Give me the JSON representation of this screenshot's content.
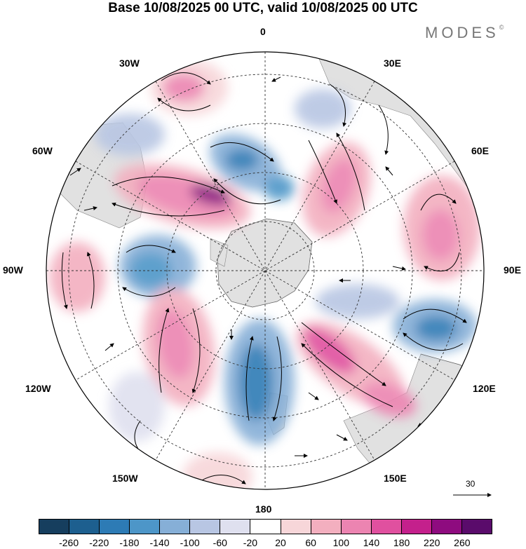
{
  "title": "Base 10/08/2025 00 UTC, valid 10/08/2025 00 UTC",
  "brand": "MODES",
  "brand_mark": "©",
  "longitude_labels": {
    "n": "0",
    "ne": "30E",
    "ene": "60E",
    "e": "90E",
    "ese": "120E",
    "se": "150E",
    "s": "180",
    "sw": "150W",
    "wsw": "120W",
    "w": "90W",
    "wnw": "60W",
    "nw": "30W"
  },
  "reference_vector": "30",
  "colorbar": {
    "ticks": [
      "-260",
      "-220",
      "-180",
      "-140",
      "-100",
      "-60",
      "-20",
      "20",
      "60",
      "100",
      "140",
      "180",
      "220",
      "260"
    ],
    "colors": [
      "#163e5e",
      "#1d5f8f",
      "#2d7bb5",
      "#4d96c8",
      "#86afd7",
      "#b8c6e3",
      "#dfe0ef",
      "#ffffff",
      "#f7d6d9",
      "#f3afbf",
      "#ec84b1",
      "#e0509f",
      "#c4208c",
      "#8e0b7f",
      "#5a0b6b"
    ]
  },
  "colors": {
    "land": "#e1e1e1",
    "positive": "#e0509f",
    "negative": "#2d7bb5"
  }
}
